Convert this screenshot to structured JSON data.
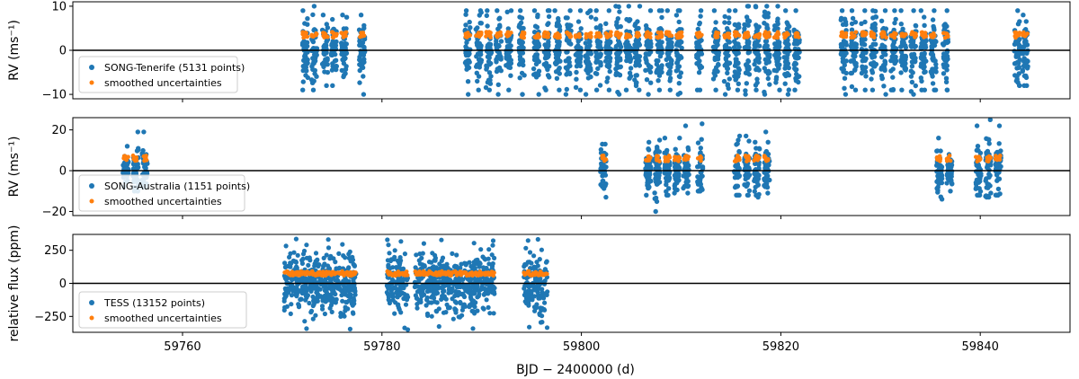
{
  "colors": {
    "observations": "#1f77b4",
    "uncertainties": "#ff7f0e",
    "axes": "#000000",
    "zero_line": "#000000"
  },
  "chart_data": [
    {
      "type": "scatter",
      "ylabel": "RV (ms⁻¹)",
      "xlim": [
        59749,
        59849
      ],
      "ylim": [
        -11,
        11
      ],
      "yticks": [
        -10,
        0,
        10
      ],
      "ytick_labels": [
        "−10",
        "0",
        "10"
      ],
      "zero_line": 0,
      "legend": {
        "position": "center-left",
        "entries": [
          "SONG-Tenerife (5131 points)",
          "smoothed uncertainties"
        ]
      },
      "series": [
        {
          "name": "SONG-Tenerife (5131 points)",
          "description_of_extent": "RV scatter clusters between about -10 and +10 ms^-1",
          "clusters": [
            {
              "x": 59772.3,
              "ylow": -9,
              "yhigh": 9
            },
            {
              "x": 59773.2,
              "ylow": -9,
              "yhigh": 10
            },
            {
              "x": 59774.3,
              "ylow": -8,
              "yhigh": 8
            },
            {
              "x": 59775.2,
              "ylow": -8,
              "yhigh": 7
            },
            {
              "x": 59776.2,
              "ylow": -6,
              "yhigh": 8
            },
            {
              "x": 59778.0,
              "ylow": -10,
              "yhigh": 8
            },
            {
              "x": 59788.6,
              "ylow": -10,
              "yhigh": 9
            },
            {
              "x": 59789.7,
              "ylow": -9,
              "yhigh": 9
            },
            {
              "x": 59790.7,
              "ylow": -9,
              "yhigh": 9
            },
            {
              "x": 59791.7,
              "ylow": -10,
              "yhigh": 9
            },
            {
              "x": 59792.7,
              "ylow": -9,
              "yhigh": 9
            },
            {
              "x": 59794.0,
              "ylow": -10,
              "yhigh": 9
            },
            {
              "x": 59795.5,
              "ylow": -10,
              "yhigh": 9
            },
            {
              "x": 59796.5,
              "ylow": -9,
              "yhigh": 9
            },
            {
              "x": 59797.6,
              "ylow": -9,
              "yhigh": 9
            },
            {
              "x": 59798.7,
              "ylow": -10,
              "yhigh": 9
            },
            {
              "x": 59799.7,
              "ylow": -9,
              "yhigh": 9
            },
            {
              "x": 59800.7,
              "ylow": -10,
              "yhigh": 9
            },
            {
              "x": 59801.7,
              "ylow": -9,
              "yhigh": 9
            },
            {
              "x": 59802.7,
              "ylow": -9,
              "yhigh": 9
            },
            {
              "x": 59803.7,
              "ylow": -10,
              "yhigh": 10
            },
            {
              "x": 59804.7,
              "ylow": -9,
              "yhigh": 10
            },
            {
              "x": 59805.6,
              "ylow": -9,
              "yhigh": 10
            },
            {
              "x": 59806.7,
              "ylow": -10,
              "yhigh": 9
            },
            {
              "x": 59807.8,
              "ylow": -9,
              "yhigh": 9
            },
            {
              "x": 59808.8,
              "ylow": -9,
              "yhigh": 9
            },
            {
              "x": 59809.8,
              "ylow": -10,
              "yhigh": 9
            },
            {
              "x": 59811.8,
              "ylow": -9,
              "yhigh": 9
            },
            {
              "x": 59813.5,
              "ylow": -9,
              "yhigh": 9
            },
            {
              "x": 59814.6,
              "ylow": -10,
              "yhigh": 9
            },
            {
              "x": 59815.6,
              "ylow": -9,
              "yhigh": 9
            },
            {
              "x": 59816.6,
              "ylow": -10,
              "yhigh": 10
            },
            {
              "x": 59817.6,
              "ylow": -9,
              "yhigh": 10
            },
            {
              "x": 59818.6,
              "ylow": -10,
              "yhigh": 10
            },
            {
              "x": 59819.6,
              "ylow": -9,
              "yhigh": 10
            },
            {
              "x": 59820.6,
              "ylow": -10,
              "yhigh": 9
            },
            {
              "x": 59821.6,
              "ylow": -9,
              "yhigh": 9
            },
            {
              "x": 59826.3,
              "ylow": -10,
              "yhigh": 9
            },
            {
              "x": 59827.3,
              "ylow": -9,
              "yhigh": 9
            },
            {
              "x": 59828.3,
              "ylow": -9,
              "yhigh": 9
            },
            {
              "x": 59829.3,
              "ylow": -9,
              "yhigh": 9
            },
            {
              "x": 59830.3,
              "ylow": -10,
              "yhigh": 9
            },
            {
              "x": 59831.3,
              "ylow": -9,
              "yhigh": 9
            },
            {
              "x": 59832.3,
              "ylow": -9,
              "yhigh": 9
            },
            {
              "x": 59833.3,
              "ylow": -10,
              "yhigh": 9
            },
            {
              "x": 59834.3,
              "ylow": -9,
              "yhigh": 9
            },
            {
              "x": 59835.3,
              "ylow": -9,
              "yhigh": 9
            },
            {
              "x": 59836.5,
              "ylow": -9,
              "yhigh": 9
            },
            {
              "x": 59843.7,
              "ylow": -8,
              "yhigh": 9
            },
            {
              "x": 59844.5,
              "ylow": -8,
              "yhigh": 8
            }
          ]
        },
        {
          "name": "smoothed uncertainties",
          "approx_value": 3.5
        }
      ]
    },
    {
      "type": "scatter",
      "ylabel": "RV (ms⁻¹)",
      "xlim": [
        59749,
        59849
      ],
      "ylim": [
        -22,
        26
      ],
      "yticks": [
        -20,
        0,
        20
      ],
      "ytick_labels": [
        "−20",
        "0",
        "20"
      ],
      "zero_line": 0,
      "legend": {
        "position": "lower-left",
        "entries": [
          "SONG-Australia (1151 points)",
          "smoothed uncertainties"
        ]
      },
      "series": [
        {
          "name": "SONG-Australia (1151 points)",
          "clusters": [
            {
              "x": 59754.3,
              "ylow": -8,
              "yhigh": 12
            },
            {
              "x": 59755.3,
              "ylow": -10,
              "yhigh": 19
            },
            {
              "x": 59756.2,
              "ylow": -8,
              "yhigh": 19
            },
            {
              "x": 59802.2,
              "ylow": -13,
              "yhigh": 13
            },
            {
              "x": 59806.7,
              "ylow": -12,
              "yhigh": 14
            },
            {
              "x": 59807.6,
              "ylow": -20,
              "yhigh": 15
            },
            {
              "x": 59808.6,
              "ylow": -12,
              "yhigh": 16
            },
            {
              "x": 59809.6,
              "ylow": -11,
              "yhigh": 16
            },
            {
              "x": 59810.5,
              "ylow": -11,
              "yhigh": 22
            },
            {
              "x": 59811.9,
              "ylow": -10,
              "yhigh": 23
            },
            {
              "x": 59815.6,
              "ylow": -12,
              "yhigh": 17
            },
            {
              "x": 59816.6,
              "ylow": -12,
              "yhigh": 17
            },
            {
              "x": 59817.6,
              "ylow": -13,
              "yhigh": 14
            },
            {
              "x": 59818.6,
              "ylow": -11,
              "yhigh": 19
            },
            {
              "x": 59835.9,
              "ylow": -14,
              "yhigh": 16
            },
            {
              "x": 59836.9,
              "ylow": -10,
              "yhigh": 8
            },
            {
              "x": 59839.8,
              "ylow": -12,
              "yhigh": 22
            },
            {
              "x": 59840.8,
              "ylow": -13,
              "yhigh": 25
            },
            {
              "x": 59841.8,
              "ylow": -12,
              "yhigh": 22
            }
          ]
        },
        {
          "name": "smoothed uncertainties",
          "approx_value": 6
        }
      ]
    },
    {
      "type": "scatter",
      "ylabel": "relative flux (ppm)",
      "xlabel": "BJD − 2400000 (d)",
      "xlim": [
        59749,
        59849
      ],
      "xticks": [
        59760,
        59780,
        59800,
        59820,
        59840
      ],
      "ylim": [
        -370,
        370
      ],
      "yticks": [
        -250,
        0,
        250
      ],
      "ytick_labels": [
        "−250",
        "0",
        "250"
      ],
      "zero_line": 0,
      "legend": {
        "position": "lower-left",
        "entries": [
          "TESS (13152 points)",
          "smoothed uncertainties"
        ]
      },
      "series": [
        {
          "name": "TESS (13152 points)",
          "segments": [
            {
              "x0": 59770.2,
              "x1": 59777.4,
              "ylow": -350,
              "yhigh": 340
            },
            {
              "x0": 59780.5,
              "x1": 59782.6,
              "ylow": -350,
              "yhigh": 340
            },
            {
              "x0": 59783.3,
              "x1": 59791.3,
              "ylow": -350,
              "yhigh": 340
            },
            {
              "x0": 59794.2,
              "x1": 59796.6,
              "ylow": -350,
              "yhigh": 340
            }
          ]
        },
        {
          "name": "smoothed uncertainties",
          "approx_value": 75
        }
      ]
    }
  ]
}
